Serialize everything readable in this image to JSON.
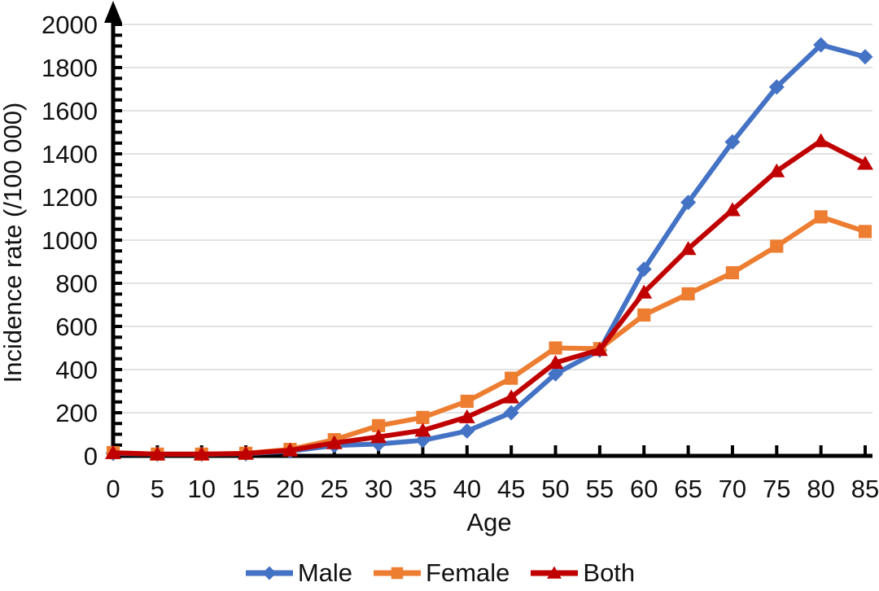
{
  "figure": {
    "background": "#ffffff",
    "text_color": "#111111",
    "gridline_color": "#d9d9d9",
    "axis_color": "#000000"
  },
  "chart_data": {
    "type": "line",
    "title": "",
    "xlabel": "Age",
    "ylabel": "Incidence rate (/100 000)",
    "x": [
      0,
      5,
      10,
      15,
      20,
      25,
      30,
      35,
      40,
      45,
      50,
      55,
      60,
      65,
      70,
      75,
      80,
      85
    ],
    "yticks": [
      0,
      200,
      400,
      600,
      800,
      1000,
      1200,
      1400,
      1600,
      1800,
      2000
    ],
    "ylim": [
      0,
      2000
    ],
    "yminor_step": 50,
    "grid": "horizontal",
    "legend_position": "bottom-center",
    "series": [
      {
        "name": "Male",
        "marker": "diamond",
        "color": "#4472C4",
        "values": [
          12,
          8,
          8,
          10,
          22,
          48,
          55,
          72,
          115,
          200,
          380,
          490,
          865,
          1175,
          1455,
          1710,
          1905,
          1850
        ]
      },
      {
        "name": "Female",
        "marker": "square",
        "color": "#ED7D31",
        "values": [
          15,
          8,
          8,
          12,
          30,
          75,
          140,
          178,
          253,
          360,
          500,
          497,
          653,
          751,
          849,
          972,
          1108,
          1040
        ]
      },
      {
        "name": "Both",
        "marker": "triangle",
        "color": "#C00000",
        "values": [
          14,
          8,
          8,
          11,
          26,
          60,
          88,
          118,
          180,
          272,
          432,
          492,
          758,
          960,
          1140,
          1320,
          1460,
          1355
        ]
      }
    ]
  }
}
